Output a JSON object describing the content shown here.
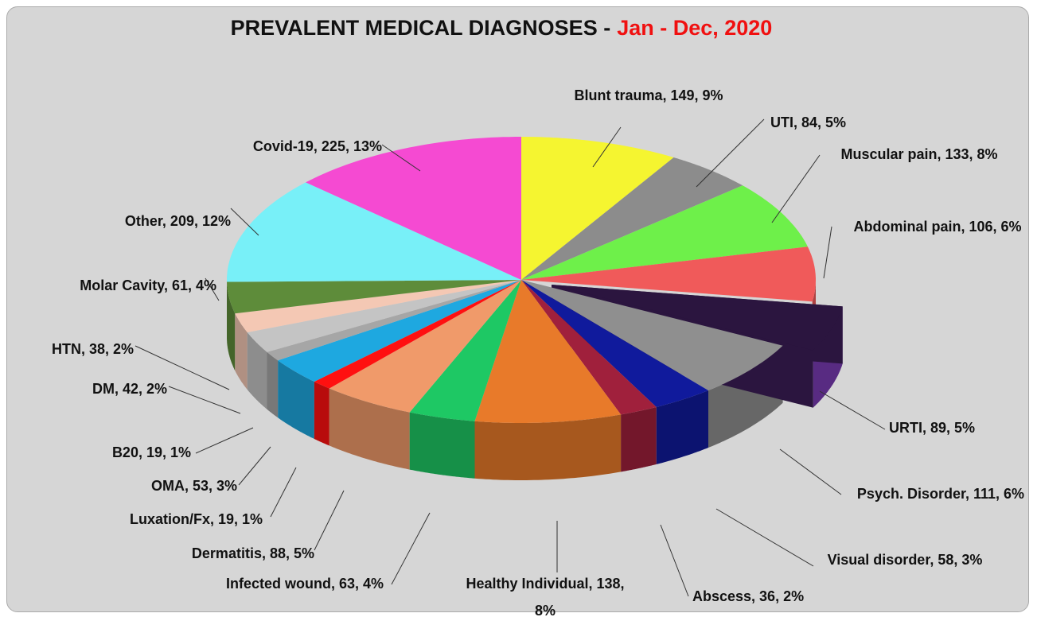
{
  "chart_data": {
    "type": "pie",
    "title": "PREVALENT MEDICAL DIAGNOSES -",
    "title_highlight": "Jan - Dec, 2020",
    "labels": [
      "Blunt trauma, 149, 9%",
      "UTI, 84, 5%",
      "Muscular pain, 133, 8%",
      "Abdominal pain, 106, 6%",
      "URTI, 89, 5%",
      "Psych. Disorder, 111, 6%",
      "Visual disorder, 58, 3%",
      "Abscess, 36, 2%",
      "Healthy Individual, 138, 8%",
      "Infected wound, 63, 4%",
      "Dermatitis, 88, 5%",
      "Luxation/Fx, 19, 1%",
      "OMA, 53, 3%",
      "B20, 19, 1%",
      "DM, 42, 2%",
      "HTN, 38, 2%",
      "Molar Cavity, 61, 4%",
      "Other, 209, 12%",
      "Covid-19, 225, 13%"
    ],
    "values": [
      149,
      84,
      133,
      106,
      89,
      111,
      58,
      36,
      138,
      63,
      88,
      19,
      53,
      19,
      42,
      38,
      61,
      209,
      225
    ],
    "colors": [
      "#f5f530",
      "#8c8c8c",
      "#6ef04a",
      "#f05a5a",
      "#7a3cb4",
      "#8f8f8f",
      "#101a9c",
      "#a0203c",
      "#e87a2a",
      "#1ec864",
      "#f09a6a",
      "#ff1010",
      "#1ea8e0",
      "#a6a6a6",
      "#c4c4c4",
      "#f4c8b4",
      "#5e8c3a",
      "#78f0f8",
      "#f54ad2"
    ]
  }
}
